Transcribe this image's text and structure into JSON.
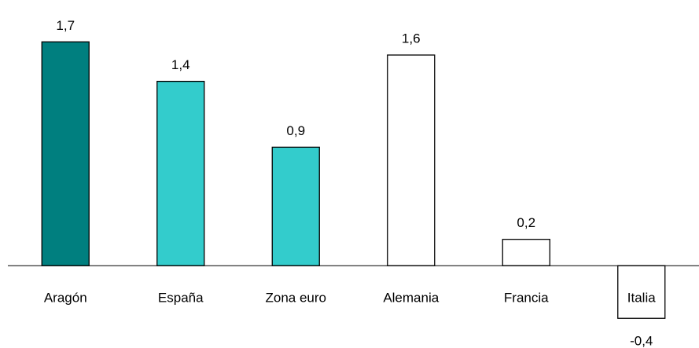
{
  "chart_data": {
    "type": "bar",
    "categories": [
      "Aragón",
      "España",
      "Zona euro",
      "Alemania",
      "Francia",
      "Italia"
    ],
    "values": [
      1.7,
      1.4,
      0.9,
      1.6,
      0.2,
      -0.4
    ],
    "value_labels": [
      "1,7",
      "1,4",
      "0,9",
      "1,6",
      "0,2",
      "-0,4"
    ],
    "colors": [
      "#007f7f",
      "#33cccc",
      "#33cccc",
      "#ffffff",
      "#ffffff",
      "#ffffff"
    ],
    "edge_color": "#000000",
    "ylim": [
      -0.5,
      2
    ]
  }
}
